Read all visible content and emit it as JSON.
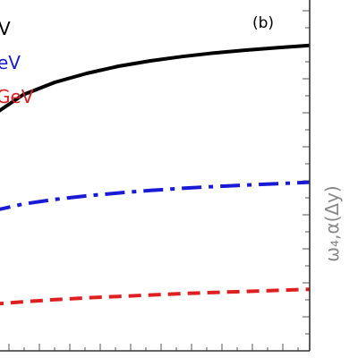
{
  "chart_data": {
    "type": "line",
    "panel_label": "(b)",
    "ylabel": "ω₄,α(Δy)",
    "xlim": [
      0,
      1
    ],
    "ylim": [
      0,
      1
    ],
    "grid": false,
    "legend": "top-left",
    "series": [
      {
        "name": "V",
        "color": "#000000",
        "dash": "solid",
        "x": [
          0.0,
          0.1,
          0.2,
          0.3,
          0.4,
          0.5,
          0.6,
          0.7,
          0.8,
          0.9,
          1.0
        ],
        "y": [
          0.65,
          0.71,
          0.745,
          0.77,
          0.79,
          0.805,
          0.817,
          0.827,
          0.835,
          0.842,
          0.848
        ]
      },
      {
        "name": "eV",
        "color": "#1a1ad6",
        "dash": "dash-dot",
        "x": [
          0.0,
          0.1,
          0.2,
          0.3,
          0.4,
          0.5,
          0.6,
          0.7,
          0.8,
          0.9,
          1.0
        ],
        "y": [
          0.385,
          0.405,
          0.418,
          0.428,
          0.436,
          0.443,
          0.449,
          0.454,
          0.458,
          0.462,
          0.466
        ]
      },
      {
        "name": "GeV",
        "color": "#dd1f1f",
        "dash": "dashed",
        "x": [
          0.0,
          0.1,
          0.2,
          0.3,
          0.4,
          0.5,
          0.6,
          0.7,
          0.8,
          0.9,
          1.0
        ],
        "y": [
          0.125,
          0.132,
          0.138,
          0.143,
          0.147,
          0.151,
          0.155,
          0.158,
          0.161,
          0.164,
          0.167
        ]
      }
    ]
  }
}
